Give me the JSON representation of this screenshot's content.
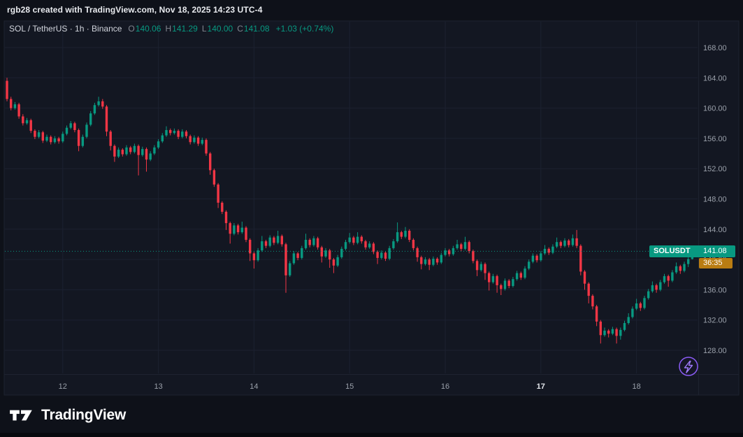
{
  "attribution": "rgb28 created with TradingView.com, Nov 18, 2025 14:23 UTC-4",
  "legend": {
    "symbol_line": "SOL / TetherUS · 1h · Binance",
    "ohlc": [
      {
        "k": "O",
        "v": "140.06"
      },
      {
        "k": "H",
        "v": "141.29"
      },
      {
        "k": "L",
        "v": "140.00"
      },
      {
        "k": "C",
        "v": "141.08"
      }
    ],
    "change": "+1.03 (+0.74%)"
  },
  "price_label": {
    "symbol": "SOLUSDT",
    "price": "141.08"
  },
  "countdown": "36:35",
  "footer": {
    "brand": "TradingView"
  },
  "colors": {
    "bg": "#131722",
    "outer_bg": "#0e1119",
    "grid": "#1c2130",
    "frame": "#1e2330",
    "axis_text": "#9aa0aa",
    "up": "#089981",
    "down": "#f23645",
    "price_label_bg": "#089981",
    "countdown_bg": "#b97c12",
    "flash_purple": "#8b5cf6"
  },
  "chart_data": {
    "type": "candlestick",
    "symbol": "SOL / TetherUS",
    "exchange": "Binance",
    "interval": "1h",
    "current_price": 141.08,
    "change": 1.03,
    "change_pct": 0.74,
    "y_ticks": [
      168,
      164,
      160,
      156,
      152,
      148,
      144,
      140,
      136,
      132,
      128
    ],
    "y_tick_labels": [
      "168.00",
      "164.00",
      "160.00",
      "156.00",
      "152.00",
      "148.00",
      "144.00",
      "140.00",
      "136.00",
      "132.00",
      "128.00"
    ],
    "y_range_visible": [
      125.0,
      171.0
    ],
    "grid": true,
    "x_ticks": [
      {
        "index": 14,
        "label": "12",
        "emphasis": false
      },
      {
        "index": 38,
        "label": "13",
        "emphasis": false
      },
      {
        "index": 62,
        "label": "14",
        "emphasis": false
      },
      {
        "index": 86,
        "label": "15",
        "emphasis": false
      },
      {
        "index": 110,
        "label": "16",
        "emphasis": false
      },
      {
        "index": 134,
        "label": "17",
        "emphasis": true
      },
      {
        "index": 158,
        "label": "18",
        "emphasis": false
      }
    ],
    "candles": [
      [
        163.6,
        164.0,
        160.9,
        161.2
      ],
      [
        161.2,
        161.5,
        159.7,
        160.0
      ],
      [
        160.0,
        160.8,
        159.8,
        160.5
      ],
      [
        160.5,
        160.7,
        158.6,
        158.9
      ],
      [
        158.9,
        159.2,
        157.7,
        158.0
      ],
      [
        158.0,
        158.7,
        157.8,
        158.4
      ],
      [
        158.4,
        158.6,
        156.7,
        157.0
      ],
      [
        157.0,
        157.2,
        155.9,
        156.2
      ],
      [
        156.2,
        157.1,
        156.0,
        156.8
      ],
      [
        156.8,
        157.0,
        155.4,
        155.7
      ],
      [
        155.7,
        156.5,
        155.5,
        156.2
      ],
      [
        156.2,
        156.4,
        155.2,
        155.5
      ],
      [
        155.5,
        156.3,
        155.3,
        156.0
      ],
      [
        156.0,
        156.2,
        155.3,
        155.6
      ],
      [
        155.6,
        156.9,
        155.4,
        156.6
      ],
      [
        156.6,
        157.7,
        156.4,
        157.4
      ],
      [
        157.4,
        158.3,
        157.2,
        158.0
      ],
      [
        158.0,
        158.2,
        156.8,
        157.1
      ],
      [
        157.1,
        157.3,
        154.3,
        155.0
      ],
      [
        155.0,
        156.5,
        154.8,
        156.2
      ],
      [
        156.2,
        158.1,
        156.0,
        157.8
      ],
      [
        157.8,
        159.6,
        157.6,
        159.3
      ],
      [
        159.3,
        160.7,
        159.1,
        160.4
      ],
      [
        160.4,
        161.5,
        160.2,
        160.9
      ],
      [
        160.9,
        161.2,
        159.9,
        160.2
      ],
      [
        160.2,
        160.4,
        156.3,
        156.9
      ],
      [
        156.9,
        157.1,
        154.4,
        155.0
      ],
      [
        155.0,
        155.2,
        152.9,
        153.6
      ],
      [
        153.6,
        154.8,
        153.4,
        154.5
      ],
      [
        154.5,
        154.7,
        153.6,
        153.9
      ],
      [
        153.9,
        155.1,
        153.7,
        154.8
      ],
      [
        154.8,
        155.0,
        153.9,
        154.2
      ],
      [
        154.2,
        155.3,
        154.0,
        155.0
      ],
      [
        155.0,
        155.2,
        151.1,
        153.8
      ],
      [
        153.8,
        154.9,
        153.6,
        154.6
      ],
      [
        154.6,
        154.8,
        151.6,
        153.2
      ],
      [
        153.2,
        154.3,
        153.0,
        154.0
      ],
      [
        154.0,
        155.1,
        153.8,
        154.8
      ],
      [
        154.8,
        155.9,
        154.6,
        155.6
      ],
      [
        155.6,
        156.7,
        155.4,
        156.4
      ],
      [
        156.4,
        157.6,
        156.2,
        157.1
      ],
      [
        157.1,
        157.3,
        156.4,
        156.7
      ],
      [
        156.7,
        157.3,
        156.5,
        157.0
      ],
      [
        157.0,
        157.2,
        155.9,
        156.2
      ],
      [
        156.2,
        157.2,
        156.0,
        156.9
      ],
      [
        156.9,
        157.1,
        156.0,
        156.3
      ],
      [
        156.3,
        156.5,
        155.2,
        155.5
      ],
      [
        155.5,
        156.4,
        155.3,
        156.1
      ],
      [
        156.1,
        156.3,
        155.0,
        155.3
      ],
      [
        155.3,
        156.1,
        155.1,
        155.8
      ],
      [
        155.8,
        156.0,
        153.7,
        154.0
      ],
      [
        154.0,
        154.2,
        151.2,
        151.8
      ],
      [
        151.8,
        152.0,
        149.6,
        149.9
      ],
      [
        149.9,
        150.1,
        146.8,
        147.5
      ],
      [
        147.5,
        147.7,
        146.0,
        146.3
      ],
      [
        146.3,
        146.5,
        143.9,
        144.8
      ],
      [
        144.8,
        145.0,
        142.1,
        143.4
      ],
      [
        143.4,
        144.8,
        143.2,
        144.5
      ],
      [
        144.5,
        144.7,
        143.3,
        143.6
      ],
      [
        143.6,
        145.0,
        143.4,
        144.2
      ],
      [
        144.2,
        144.4,
        142.3,
        142.6
      ],
      [
        142.6,
        142.8,
        139.8,
        140.8
      ],
      [
        140.8,
        141.0,
        138.8,
        139.9
      ],
      [
        139.9,
        141.5,
        139.7,
        141.2
      ],
      [
        141.2,
        143.1,
        141.0,
        142.4
      ],
      [
        142.4,
        142.6,
        141.5,
        141.8
      ],
      [
        141.8,
        143.2,
        141.6,
        142.9
      ],
      [
        142.9,
        143.1,
        141.9,
        142.2
      ],
      [
        142.2,
        143.8,
        142.0,
        143.1
      ],
      [
        143.1,
        143.3,
        141.7,
        142.0
      ],
      [
        142.0,
        142.2,
        135.6,
        137.9
      ],
      [
        137.9,
        139.8,
        137.7,
        139.5
      ],
      [
        139.5,
        141.1,
        139.3,
        140.8
      ],
      [
        140.8,
        141.0,
        139.9,
        140.2
      ],
      [
        140.2,
        141.8,
        140.0,
        141.5
      ],
      [
        141.5,
        143.4,
        141.3,
        142.6
      ],
      [
        142.6,
        142.8,
        141.6,
        141.9
      ],
      [
        141.9,
        143.1,
        141.7,
        142.8
      ],
      [
        142.8,
        143.0,
        141.3,
        141.6
      ],
      [
        141.6,
        141.8,
        139.6,
        140.4
      ],
      [
        140.4,
        141.5,
        140.2,
        141.2
      ],
      [
        141.2,
        141.4,
        138.9,
        140.0
      ],
      [
        140.0,
        140.2,
        138.2,
        139.2
      ],
      [
        139.2,
        140.6,
        139.0,
        140.3
      ],
      [
        140.3,
        141.7,
        140.1,
        141.4
      ],
      [
        141.4,
        142.6,
        141.2,
        142.3
      ],
      [
        142.3,
        143.5,
        142.1,
        142.9
      ],
      [
        142.9,
        143.1,
        141.9,
        142.2
      ],
      [
        142.2,
        143.6,
        142.0,
        143.0
      ],
      [
        143.0,
        143.2,
        142.1,
        142.4
      ],
      [
        142.4,
        142.6,
        141.3,
        141.6
      ],
      [
        141.6,
        142.4,
        141.4,
        142.1
      ],
      [
        142.1,
        142.3,
        140.7,
        141.0
      ],
      [
        141.0,
        141.2,
        139.4,
        140.2
      ],
      [
        140.2,
        141.2,
        140.0,
        140.9
      ],
      [
        140.9,
        141.1,
        139.8,
        140.1
      ],
      [
        140.1,
        141.8,
        139.9,
        141.5
      ],
      [
        141.5,
        142.7,
        141.3,
        142.4
      ],
      [
        142.4,
        144.9,
        142.2,
        143.6
      ],
      [
        143.6,
        143.8,
        142.7,
        143.0
      ],
      [
        143.0,
        144.3,
        142.8,
        143.8
      ],
      [
        143.8,
        144.0,
        142.3,
        142.6
      ],
      [
        142.6,
        142.8,
        141.2,
        141.5
      ],
      [
        141.5,
        141.7,
        139.7,
        140.3
      ],
      [
        140.3,
        140.5,
        138.7,
        139.4
      ],
      [
        139.4,
        140.3,
        139.2,
        140.0
      ],
      [
        140.0,
        140.2,
        138.6,
        139.3
      ],
      [
        139.3,
        140.4,
        139.1,
        140.1
      ],
      [
        140.1,
        140.3,
        139.3,
        139.6
      ],
      [
        139.6,
        140.9,
        139.4,
        140.6
      ],
      [
        140.6,
        141.5,
        140.4,
        141.2
      ],
      [
        141.2,
        141.4,
        140.4,
        140.7
      ],
      [
        140.7,
        141.8,
        140.5,
        141.5
      ],
      [
        141.5,
        142.6,
        141.3,
        142.0
      ],
      [
        142.0,
        142.2,
        141.1,
        141.4
      ],
      [
        141.4,
        143.0,
        141.2,
        142.3
      ],
      [
        142.3,
        142.5,
        140.8,
        141.1
      ],
      [
        141.1,
        141.3,
        139.5,
        139.8
      ],
      [
        139.8,
        140.0,
        137.8,
        138.6
      ],
      [
        138.6,
        139.7,
        138.4,
        139.4
      ],
      [
        139.4,
        139.6,
        137.3,
        138.2
      ],
      [
        138.2,
        138.4,
        135.9,
        137.0
      ],
      [
        137.0,
        138.1,
        136.8,
        137.8
      ],
      [
        137.8,
        138.0,
        135.6,
        136.6
      ],
      [
        136.6,
        136.8,
        135.3,
        136.1
      ],
      [
        136.1,
        137.5,
        135.9,
        137.2
      ],
      [
        137.2,
        137.4,
        136.2,
        136.5
      ],
      [
        136.5,
        137.7,
        136.3,
        137.4
      ],
      [
        137.4,
        138.5,
        137.2,
        138.2
      ],
      [
        138.2,
        138.4,
        137.3,
        137.6
      ],
      [
        137.6,
        139.1,
        137.4,
        138.8
      ],
      [
        138.8,
        140.0,
        138.6,
        139.7
      ],
      [
        139.7,
        140.8,
        139.5,
        140.5
      ],
      [
        140.5,
        140.7,
        139.6,
        139.9
      ],
      [
        139.9,
        141.1,
        139.7,
        140.8
      ],
      [
        140.8,
        141.9,
        140.6,
        141.4
      ],
      [
        141.4,
        141.6,
        140.6,
        140.9
      ],
      [
        140.9,
        142.0,
        140.7,
        141.7
      ],
      [
        141.7,
        142.9,
        141.5,
        142.3
      ],
      [
        142.3,
        142.5,
        141.5,
        141.8
      ],
      [
        141.8,
        142.8,
        141.6,
        142.5
      ],
      [
        142.5,
        142.7,
        141.6,
        141.9
      ],
      [
        141.9,
        143.3,
        141.7,
        142.8
      ],
      [
        142.8,
        143.9,
        141.5,
        141.8
      ],
      [
        141.8,
        142.0,
        137.9,
        138.4
      ],
      [
        138.4,
        138.6,
        136.0,
        136.8
      ],
      [
        136.8,
        137.0,
        134.2,
        135.2
      ],
      [
        135.2,
        135.4,
        133.4,
        133.8
      ],
      [
        133.8,
        134.0,
        131.2,
        131.8
      ],
      [
        131.8,
        132.0,
        128.9,
        130.0
      ],
      [
        130.0,
        131.0,
        129.8,
        130.6
      ],
      [
        130.6,
        130.8,
        129.7,
        130.2
      ],
      [
        130.2,
        131.1,
        130.0,
        130.8
      ],
      [
        130.8,
        131.0,
        128.9,
        129.9
      ],
      [
        129.9,
        131.0,
        129.4,
        130.7
      ],
      [
        130.7,
        131.9,
        130.5,
        131.6
      ],
      [
        131.6,
        132.9,
        131.4,
        132.4
      ],
      [
        132.4,
        133.8,
        132.2,
        133.5
      ],
      [
        133.5,
        134.8,
        133.3,
        134.2
      ],
      [
        134.2,
        134.4,
        133.2,
        133.6
      ],
      [
        133.6,
        135.2,
        133.4,
        134.9
      ],
      [
        134.9,
        136.1,
        134.7,
        135.8
      ],
      [
        135.8,
        137.1,
        135.6,
        136.6
      ],
      [
        136.6,
        136.8,
        135.6,
        136.0
      ],
      [
        136.0,
        137.3,
        135.8,
        137.0
      ],
      [
        137.0,
        138.1,
        136.8,
        137.8
      ],
      [
        137.8,
        138.0,
        136.4,
        137.2
      ],
      [
        137.2,
        138.6,
        137.0,
        138.3
      ],
      [
        138.3,
        139.6,
        138.1,
        139.1
      ],
      [
        139.1,
        139.3,
        138.1,
        138.5
      ],
      [
        138.5,
        139.7,
        138.3,
        139.4
      ],
      [
        139.4,
        140.3,
        139.0,
        140.05
      ],
      [
        140.06,
        141.29,
        140.0,
        141.08
      ]
    ]
  }
}
